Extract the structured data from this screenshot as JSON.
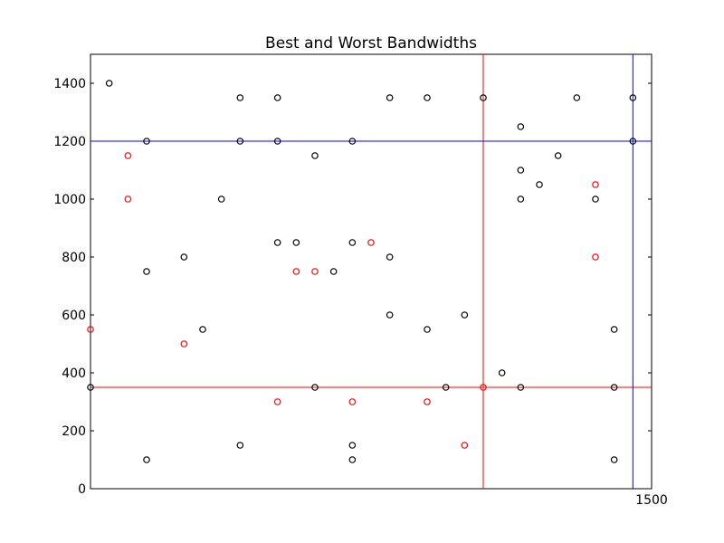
{
  "chart_data": {
    "type": "scatter",
    "title": "Best and Worst Bandwidths",
    "xlabel": "",
    "ylabel": "",
    "xlim": [
      0,
      1500
    ],
    "ylim": [
      0,
      1500
    ],
    "grid": false,
    "x_ticks": [
      1500
    ],
    "y_ticks": [
      0,
      200,
      400,
      600,
      800,
      1000,
      1200,
      1400
    ],
    "colors": {
      "black": "#000000",
      "red": "#ff0000",
      "blue": "#0000ff"
    },
    "series": [
      {
        "color": "#000000",
        "points": [
          [
            50,
            1400
          ],
          [
            0,
            350
          ],
          [
            150,
            1200
          ],
          [
            150,
            750
          ],
          [
            150,
            100
          ],
          [
            250,
            800
          ],
          [
            300,
            550
          ],
          [
            350,
            1000
          ],
          [
            400,
            1350
          ],
          [
            400,
            1200
          ],
          [
            400,
            150
          ],
          [
            500,
            1350
          ],
          [
            500,
            1200
          ],
          [
            500,
            850
          ],
          [
            550,
            850
          ],
          [
            600,
            1150
          ],
          [
            600,
            350
          ],
          [
            650,
            750
          ],
          [
            700,
            1200
          ],
          [
            700,
            850
          ],
          [
            700,
            150
          ],
          [
            700,
            100
          ],
          [
            800,
            1350
          ],
          [
            800,
            800
          ],
          [
            800,
            600
          ],
          [
            900,
            1350
          ],
          [
            900,
            550
          ],
          [
            950,
            350
          ],
          [
            1000,
            600
          ],
          [
            1050,
            1350
          ],
          [
            1100,
            400
          ],
          [
            1150,
            1250
          ],
          [
            1150,
            1100
          ],
          [
            1150,
            1000
          ],
          [
            1150,
            350
          ],
          [
            1200,
            1050
          ],
          [
            1250,
            1150
          ],
          [
            1300,
            1350
          ],
          [
            1350,
            1000
          ],
          [
            1400,
            550
          ],
          [
            1400,
            350
          ],
          [
            1400,
            100
          ],
          [
            1450,
            1350
          ],
          [
            1450,
            1200
          ]
        ]
      },
      {
        "color": "#ff0000",
        "points": [
          [
            0,
            550
          ],
          [
            100,
            1150
          ],
          [
            100,
            1000
          ],
          [
            250,
            500
          ],
          [
            500,
            300
          ],
          [
            550,
            750
          ],
          [
            600,
            750
          ],
          [
            700,
            300
          ],
          [
            750,
            850
          ],
          [
            900,
            300
          ],
          [
            1000,
            150
          ],
          [
            1050,
            350
          ],
          [
            1350,
            1050
          ],
          [
            1350,
            800
          ]
        ]
      }
    ],
    "reference_lines": [
      {
        "orientation": "vertical",
        "value": 1050,
        "color": "#ff0000"
      },
      {
        "orientation": "horizontal",
        "value": 350,
        "color": "#ff0000"
      },
      {
        "orientation": "vertical",
        "value": 1450,
        "color": "#0000ff"
      },
      {
        "orientation": "horizontal",
        "value": 1200,
        "color": "#0000ff"
      }
    ]
  }
}
